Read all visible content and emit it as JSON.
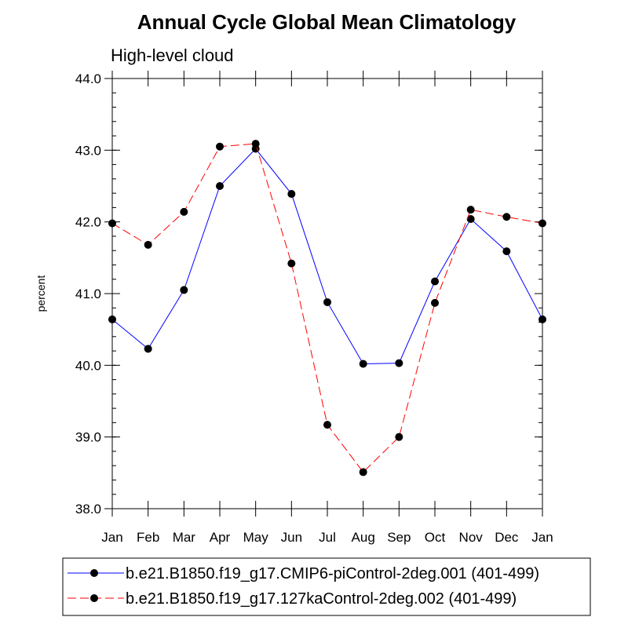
{
  "chart_data": {
    "type": "line",
    "title": "Annual Cycle Global Mean Climatology",
    "subtitle": "High-level cloud",
    "xlabel": "",
    "ylabel": "percent",
    "categories": [
      "Jan",
      "Feb",
      "Mar",
      "Apr",
      "May",
      "Jun",
      "Jul",
      "Aug",
      "Sep",
      "Oct",
      "Nov",
      "Dec",
      "Jan"
    ],
    "ylim": [
      38.0,
      44.0
    ],
    "yticks": [
      "38.0",
      "39.0",
      "40.0",
      "41.0",
      "42.0",
      "43.0",
      "44.0"
    ],
    "yminor_step": 0.2,
    "grid": false,
    "legend_position": "bottom",
    "series": [
      {
        "name": "b.e21.B1850.f19_g17.CMIP6-piControl-2deg.001 (401-499)",
        "color": "#0000ff",
        "dashed": false,
        "values": [
          40.64,
          40.23,
          41.05,
          42.5,
          43.02,
          42.39,
          40.88,
          40.02,
          40.03,
          41.17,
          42.04,
          41.59,
          40.64
        ]
      },
      {
        "name": "b.e21.B1850.f19_g17.127kaControl-2deg.002 (401-499)",
        "color": "#ff0000",
        "dashed": true,
        "values": [
          41.98,
          41.68,
          42.14,
          43.05,
          43.09,
          41.42,
          39.17,
          38.51,
          39.0,
          40.87,
          42.17,
          42.07,
          41.98
        ]
      }
    ]
  }
}
